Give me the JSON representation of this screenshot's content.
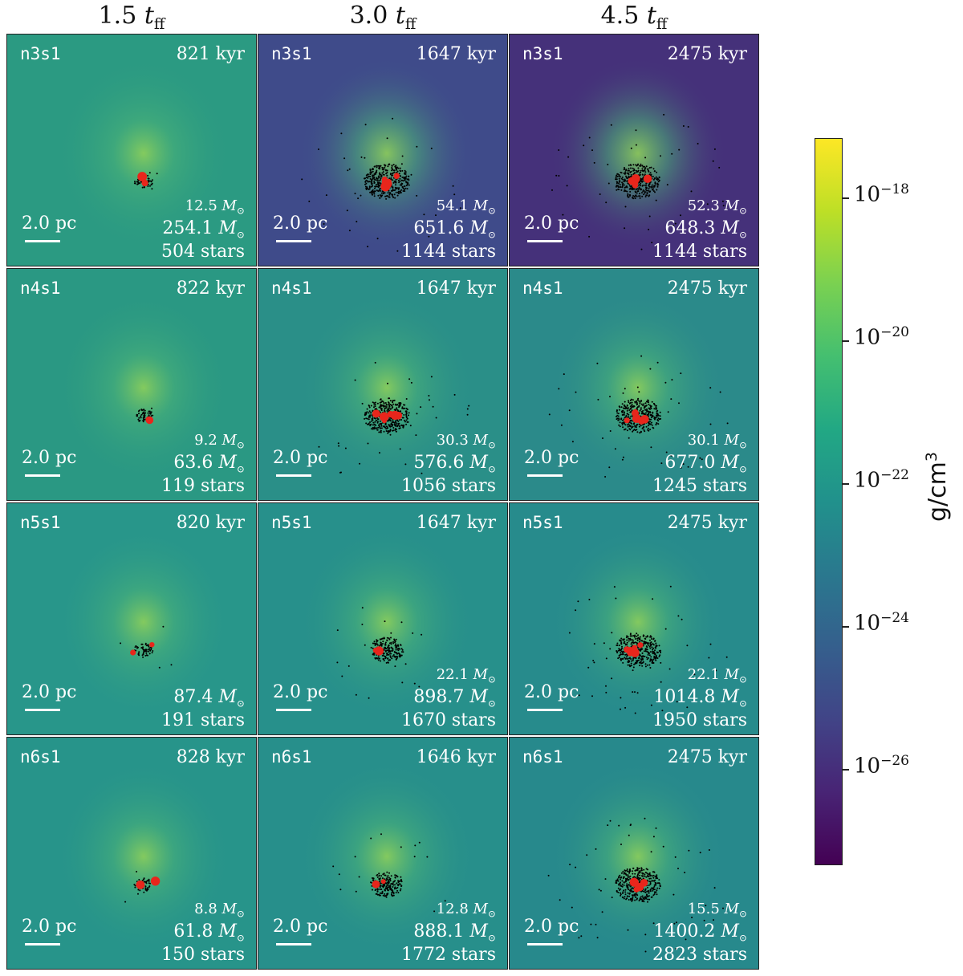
{
  "columns": [
    {
      "value": "1.5",
      "sym": "t",
      "sub": "ff"
    },
    {
      "value": "3.0",
      "sym": "t",
      "sub": "ff"
    },
    {
      "value": "4.5",
      "sym": "t",
      "sub": "ff"
    }
  ],
  "scale_label": "2.0 pc",
  "panels": [
    {
      "sim": "n3s1",
      "time": "821 kyr",
      "m1": "12.5",
      "m2": "254.1",
      "stars": "504 stars",
      "bg": "#2b9a82",
      "dense": false
    },
    {
      "sim": "n3s1",
      "time": "1647 kyr",
      "m1": "54.1",
      "m2": "651.6",
      "stars": "1144 stars",
      "bg": "#3f4b8a",
      "dense": true
    },
    {
      "sim": "n3s1",
      "time": "2475 kyr",
      "m1": "52.3",
      "m2": "648.3",
      "stars": "1144 stars",
      "bg": "#45317a",
      "dense": true
    },
    {
      "sim": "n4s1",
      "time": "822 kyr",
      "m1": "9.2",
      "m2": "63.6",
      "stars": "119 stars",
      "bg": "#2a9883",
      "dense": false
    },
    {
      "sim": "n4s1",
      "time": "1647 kyr",
      "m1": "30.3",
      "m2": "576.6",
      "stars": "1056 stars",
      "bg": "#2a8f88",
      "dense": true
    },
    {
      "sim": "n4s1",
      "time": "2475 kyr",
      "m1": "30.1",
      "m2": "677.0",
      "stars": "1245 stars",
      "bg": "#2b8a8a",
      "dense": true
    },
    {
      "sim": "n5s1",
      "time": "820 kyr",
      "m1": "",
      "m2": "87.4",
      "stars": "191 stars",
      "bg": "#28968a",
      "dense": false
    },
    {
      "sim": "n5s1",
      "time": "1647 kyr",
      "m1": "22.1",
      "m2": "898.7",
      "stars": "1670 stars",
      "bg": "#27908b",
      "dense": false
    },
    {
      "sim": "n5s1",
      "time": "2475 kyr",
      "m1": "22.1",
      "m2": "1014.8",
      "stars": "1950 stars",
      "bg": "#278b8c",
      "dense": true
    },
    {
      "sim": "n6s1",
      "time": "828 kyr",
      "m1": "8.8",
      "m2": "61.8",
      "stars": "150 stars",
      "bg": "#27948a",
      "dense": false
    },
    {
      "sim": "n6s1",
      "time": "1646 kyr",
      "m1": "12.8",
      "m2": "888.1",
      "stars": "1772 stars",
      "bg": "#278f8b",
      "dense": false
    },
    {
      "sim": "n6s1",
      "time": "2475 kyr",
      "m1": "15.5",
      "m2": "1400.2",
      "stars": "2823 stars",
      "bg": "#27898c",
      "dense": true
    }
  ],
  "mass_symbol": "M",
  "colorbar": {
    "label": "g/cm",
    "label_exp": "3",
    "ticks": [
      {
        "base": "10",
        "exp": "−18"
      },
      {
        "base": "10",
        "exp": "−20"
      },
      {
        "base": "10",
        "exp": "−22"
      },
      {
        "base": "10",
        "exp": "−24"
      },
      {
        "base": "10",
        "exp": "−26"
      }
    ],
    "colormap": "viridis"
  }
}
